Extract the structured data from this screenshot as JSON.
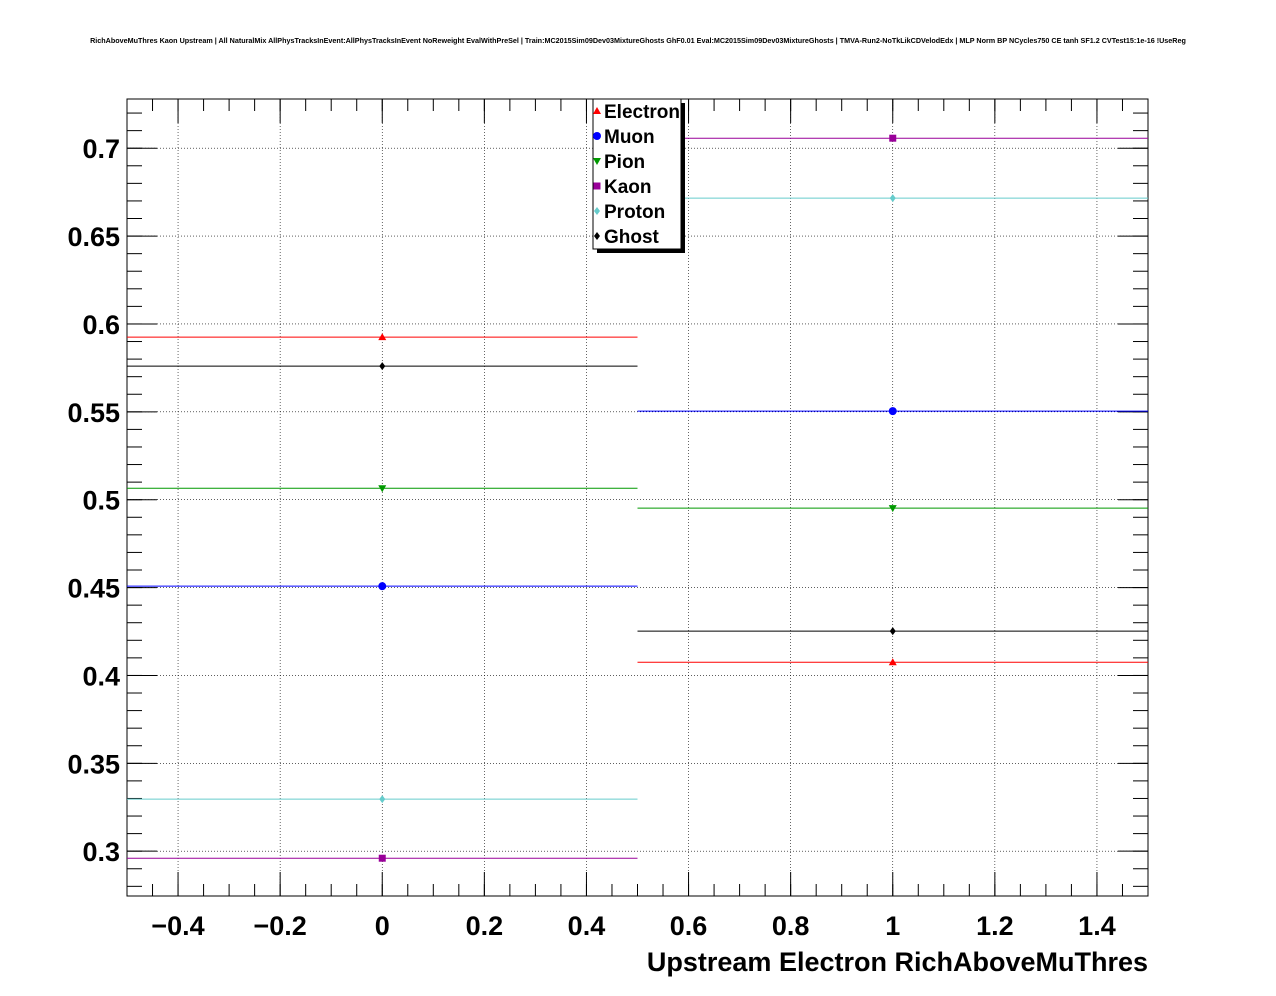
{
  "chart_data": {
    "type": "scatter",
    "title": "RichAboveMuThres Kaon Upstream | All NaturalMix AllPhysTracksInEvent:AllPhysTracksInEvent NoReweight EvalWithPreSel | Train:MC2015Sim09Dev03MixtureGhosts GhF0.01 Eval:MC2015Sim09Dev03MixtureGhosts | TMVA-Run2-NoTkLikCDVelodEdx | MLP Norm BP NCycles750 CE tanh SF1.2 CVTest15:1e-16 !UseReg",
    "xlabel": "Upstream Electron RichAboveMuThres",
    "ylabel": "",
    "xlim": [
      -0.5,
      1.5
    ],
    "ylim": [
      0.2745,
      0.728
    ],
    "grid": true,
    "legend_position": "top-center",
    "x_ticks": [
      "−0.4",
      "−0.2",
      "0",
      "0.2",
      "0.4",
      "0.6",
      "0.8",
      "1",
      "1.2",
      "1.4"
    ],
    "x_tick_values": [
      -0.4,
      -0.2,
      0,
      0.2,
      0.4,
      0.6,
      0.8,
      1,
      1.2,
      1.4
    ],
    "y_ticks": [
      "0.3",
      "0.35",
      "0.4",
      "0.45",
      "0.5",
      "0.55",
      "0.6",
      "0.65",
      "0.7"
    ],
    "y_tick_values": [
      0.3,
      0.35,
      0.4,
      0.45,
      0.5,
      0.55,
      0.6,
      0.65,
      0.7
    ],
    "x": [
      0,
      1
    ],
    "x_err": 0.5,
    "series": [
      {
        "name": "Electron",
        "color": "#ff0000",
        "marker": "triangle-up",
        "values": [
          0.5925,
          0.4075
        ]
      },
      {
        "name": "Muon",
        "color": "#0000ff",
        "marker": "circle",
        "values": [
          0.4508,
          0.5504
        ]
      },
      {
        "name": "Pion",
        "color": "#009900",
        "marker": "triangle-down",
        "values": [
          0.5065,
          0.4952
        ]
      },
      {
        "name": "Kaon",
        "color": "#990099",
        "marker": "square",
        "values": [
          0.296,
          0.7057
        ]
      },
      {
        "name": "Proton",
        "color": "#66cccc",
        "marker": "diamond",
        "values": [
          0.3296,
          0.6716
        ]
      },
      {
        "name": "Ghost",
        "color": "#000000",
        "marker": "diamond",
        "values": [
          0.576,
          0.4252
        ]
      }
    ]
  }
}
